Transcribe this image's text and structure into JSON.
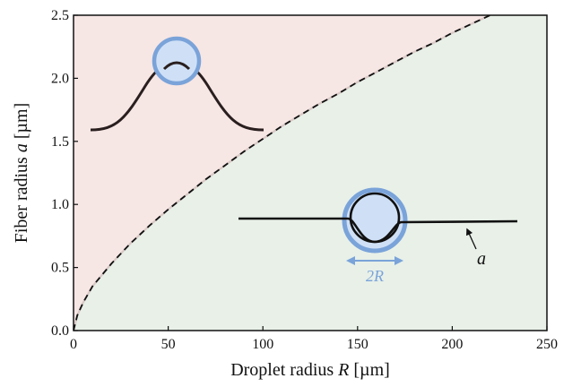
{
  "chart_data": {
    "type": "area",
    "xlabel_prefix": "Droplet radius ",
    "xlabel_var": "R",
    "xlabel_unit": " [µm]",
    "ylabel_prefix": "Fiber radius ",
    "ylabel_var": "a",
    "ylabel_unit": " [µm]",
    "xlim": [
      0,
      250
    ],
    "ylim": [
      0,
      2.5
    ],
    "xticks": [
      0,
      50,
      100,
      150,
      200,
      250
    ],
    "yticks": [
      0,
      0.5,
      1,
      1.5,
      2,
      2.5
    ],
    "xtick_labels": [
      "0",
      "50",
      "100",
      "150",
      "200",
      "250"
    ],
    "ytick_labels": [
      "0.0",
      "0.5",
      "1.0",
      "1.5",
      "2.0",
      "2.5"
    ],
    "boundary_curve": {
      "style": "dashed",
      "x": [
        0,
        2,
        5,
        10,
        20,
        30,
        40,
        50,
        60,
        70,
        80,
        90,
        100,
        110,
        120,
        130,
        140,
        150,
        160,
        170,
        180,
        190,
        200,
        210,
        220
      ],
      "y": [
        0.0,
        0.12,
        0.22,
        0.35,
        0.53,
        0.69,
        0.83,
        0.96,
        1.08,
        1.2,
        1.31,
        1.42,
        1.52,
        1.62,
        1.71,
        1.8,
        1.88,
        1.97,
        2.05,
        2.13,
        2.21,
        2.28,
        2.36,
        2.43,
        2.5
      ]
    },
    "regions": [
      {
        "position": "above boundary",
        "color": "#f6e6e4"
      },
      {
        "position": "below boundary",
        "color": "#e8f0e8"
      }
    ],
    "annotations": [
      {
        "text": "2R",
        "color": "#7aa3d9"
      },
      {
        "text": "a",
        "color": "#111111"
      }
    ]
  }
}
